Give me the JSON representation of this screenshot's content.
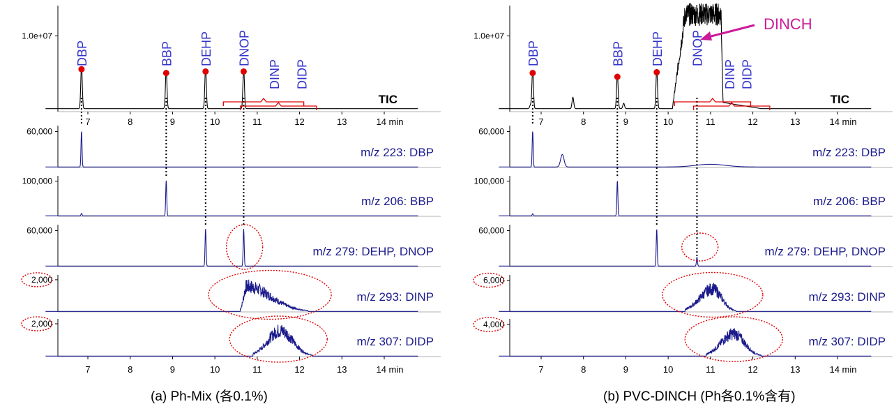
{
  "colors": {
    "tic": "#000000",
    "ion": "#1a1a8c",
    "label": "#3333cc",
    "annotation": "#e00000",
    "dinch": "#cc1a99",
    "axis": "#000000"
  },
  "chart_data": [
    {
      "type": "line",
      "caption": "(a) Ph-Mix (各0.1%)",
      "x_unit": "min",
      "xlim": [
        6.0,
        14.8
      ],
      "x_ticks": [
        "7",
        "8",
        "9",
        "10",
        "11",
        "12",
        "13",
        "14 min"
      ],
      "tic": {
        "trace_label": "TIC",
        "y_tick_label": "1.0e+07",
        "y_tick_value": 10000000,
        "ylim": [
          0,
          14000000
        ],
        "peaks": [
          {
            "name": "DBP",
            "rt": 6.85,
            "height": 5600000
          },
          {
            "name": "BBP",
            "rt": 8.85,
            "height": 5100000
          },
          {
            "name": "DEHP",
            "rt": 9.78,
            "height": 5300000
          },
          {
            "name": "DNOP",
            "rt": 10.68,
            "height": 5300000
          }
        ],
        "compound_labels": [
          {
            "text": "DBP",
            "rt": 6.85
          },
          {
            "text": "BBP",
            "rt": 8.85
          },
          {
            "text": "DEHP",
            "rt": 9.78
          },
          {
            "text": "DNOP",
            "rt": 10.68
          },
          {
            "text": "DINP",
            "rt": 11.4
          },
          {
            "text": "DIDP",
            "rt": 12.05
          }
        ],
        "elution_ranges": [
          {
            "name": "DINP",
            "start": 10.2,
            "end": 12.1
          },
          {
            "name": "DIDP",
            "start": 10.6,
            "end": 12.4
          }
        ]
      },
      "ion_traces": [
        {
          "label": "m/z 223: DBP",
          "y_tick_label": "60,000",
          "y_tick_value": 60000,
          "ylim": [
            0,
            70000
          ],
          "peaks": [
            {
              "rt": 6.85,
              "height": 60000
            }
          ]
        },
        {
          "label": "m/z 206: BBP",
          "y_tick_label": "100,000",
          "y_tick_value": 100000,
          "ylim": [
            0,
            115000
          ],
          "peaks": [
            {
              "rt": 6.85,
              "height": 7000
            },
            {
              "rt": 8.85,
              "height": 100000
            }
          ]
        },
        {
          "label": "m/z 279: DEHP, DNOP",
          "y_tick_label": "60,000",
          "y_tick_value": 60000,
          "ylim": [
            0,
            70000
          ],
          "peaks": [
            {
              "rt": 9.78,
              "height": 62000
            },
            {
              "rt": 10.68,
              "height": 62000
            }
          ]
        },
        {
          "label": "m/z 293: DINP",
          "y_tick_label": "2,000",
          "y_tick_value": 2000,
          "ylim": [
            0,
            2300
          ],
          "isomer_cluster": {
            "start": 10.6,
            "end": 12.2,
            "apex": 10.75,
            "max": 2000
          }
        },
        {
          "label": "m/z 307: DIDP",
          "y_tick_label": "2,000",
          "y_tick_value": 2000,
          "ylim": [
            0,
            2300
          ],
          "isomer_cluster": {
            "start": 10.9,
            "end": 12.3,
            "apex": 11.55,
            "max": 2000
          }
        }
      ]
    },
    {
      "type": "line",
      "caption": "(b) PVC-DINCH (Ph各0.1%含有)",
      "x_unit": "min",
      "xlim": [
        6.0,
        14.8
      ],
      "x_ticks": [
        "7",
        "8",
        "9",
        "10",
        "11",
        "12",
        "13",
        "14 min"
      ],
      "tic": {
        "trace_label": "TIC",
        "y_tick_label": "1.0e+07",
        "y_tick_value": 10000000,
        "ylim": [
          0,
          14000000
        ],
        "annotation": {
          "text": "DINCH",
          "rt": 10.6
        },
        "peaks": [
          {
            "name": "DBP",
            "rt": 6.8,
            "height": 5100000
          },
          {
            "name": "BBP",
            "rt": 8.8,
            "height": 4600000
          },
          {
            "name": "DEHP",
            "rt": 9.73,
            "height": 5200000
          }
        ],
        "dinch_envelope": {
          "start": 10.1,
          "end": 11.3,
          "max": 14000000
        },
        "compound_labels": [
          {
            "text": "DBP",
            "rt": 6.8
          },
          {
            "text": "BBP",
            "rt": 8.8
          },
          {
            "text": "DEHP",
            "rt": 9.73
          },
          {
            "text": "DNOP",
            "rt": 10.68
          },
          {
            "text": "DINP",
            "rt": 11.45
          },
          {
            "text": "DIDP",
            "rt": 11.85
          }
        ],
        "elution_ranges": [
          {
            "name": "DINP",
            "start": 10.15,
            "end": 11.95
          },
          {
            "name": "DIDP",
            "start": 10.6,
            "end": 12.4
          }
        ]
      },
      "ion_traces": [
        {
          "label": "m/z 223: DBP",
          "y_tick_label": "60,000",
          "y_tick_value": 60000,
          "ylim": [
            0,
            70000
          ],
          "peaks": [
            {
              "rt": 6.8,
              "height": 60000
            },
            {
              "rt": 7.5,
              "height": 21000
            }
          ]
        },
        {
          "label": "m/z 206: BBP",
          "y_tick_label": "100,000",
          "y_tick_value": 100000,
          "ylim": [
            0,
            115000
          ],
          "peaks": [
            {
              "rt": 6.8,
              "height": 6000
            },
            {
              "rt": 8.8,
              "height": 100000
            }
          ]
        },
        {
          "label": "m/z 279: DEHP, DNOP",
          "y_tick_label": "60,000",
          "y_tick_value": 60000,
          "ylim": [
            0,
            70000
          ],
          "peaks": [
            {
              "rt": 9.73,
              "height": 62000
            },
            {
              "rt": 10.68,
              "height": 15000
            }
          ]
        },
        {
          "label": "m/z 293: DINP",
          "y_tick_label": "6,000",
          "y_tick_value": 6000,
          "ylim": [
            0,
            7000
          ],
          "isomer_cluster": {
            "start": 10.4,
            "end": 11.6,
            "apex": 11.05,
            "max": 5500
          }
        },
        {
          "label": "m/z 307: DIDP",
          "y_tick_label": "4,000",
          "y_tick_value": 4000,
          "ylim": [
            0,
            4700
          ],
          "isomer_cluster": {
            "start": 10.9,
            "end": 12.2,
            "apex": 11.55,
            "max": 3600
          }
        }
      ]
    }
  ]
}
